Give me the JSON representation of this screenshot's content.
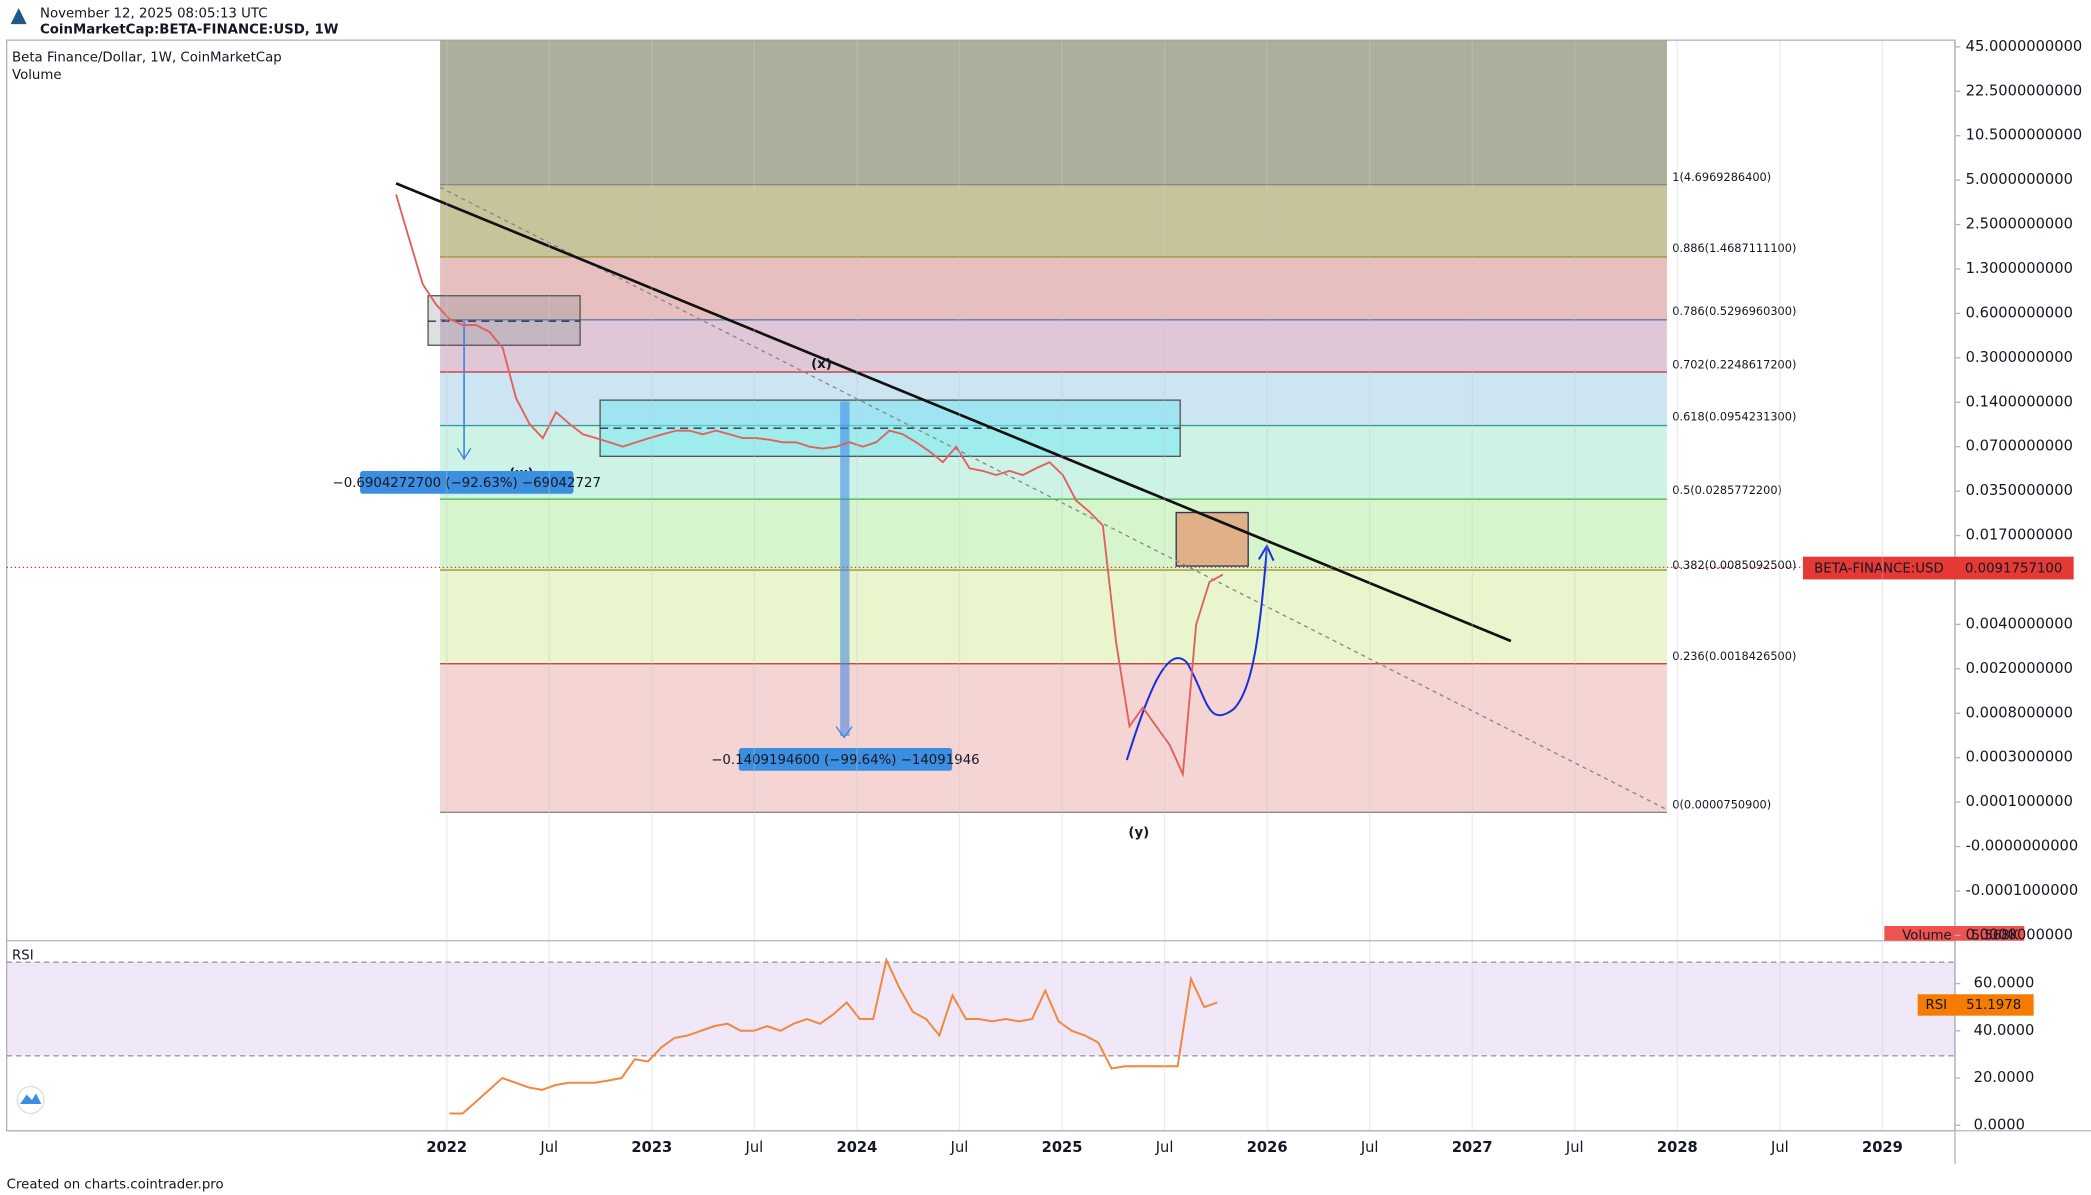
{
  "header": {
    "timestamp": "November 12, 2025 08:05:13 UTC",
    "symbol": "CoinMarketCap:BETA-FINANCE:USD, 1W"
  },
  "legend": {
    "title": "Beta Finance/Dollar, 1W, CoinMarketCap",
    "volume": "Volume"
  },
  "price_axis": [
    "45.0000000000",
    "22.5000000000",
    "10.5000000000",
    "5.0000000000",
    "2.5000000000",
    "1.3000000000",
    "0.6000000000",
    "0.3000000000",
    "0.1400000000",
    "0.0700000000",
    "0.0350000000",
    "0.0170000000",
    "0.0040000000",
    "0.0020000000",
    "0.0008000000",
    "0.0003000000",
    "0.0001000000",
    "-0.0000000000",
    "-0.0001000000",
    "0.0000000000"
  ],
  "current_price": {
    "symbol": "BETA-FINANCE:USD",
    "value": "0.0091757100"
  },
  "volume_badge": {
    "name": "Volume",
    "value": "5.568K"
  },
  "fib_levels": [
    "1(4.6969286400)",
    "0.886(1.4687111100)",
    "0.786(0.5296960300)",
    "0.702(0.2248617200)",
    "0.618(0.0954231300)",
    "0.5(0.0285772200)",
    "0.382(0.0085092500)",
    "0.236(0.0018426500)",
    "0(0.0000750900)"
  ],
  "waves": [
    "(x)",
    "(w)",
    "(y)"
  ],
  "measures": [
    "−0.6904272700 (−92.63%) −69042727",
    "−0.1409194600 (−99.64%) −14091946"
  ],
  "price": [
    4.0,
    2.0,
    1.0,
    0.7,
    0.55,
    0.5,
    0.5,
    0.45,
    0.35,
    0.15,
    0.1,
    0.08,
    0.12,
    0.1,
    0.085,
    0.08,
    0.075,
    0.07,
    0.075,
    0.08,
    0.085,
    0.09,
    0.09,
    0.085,
    0.09,
    0.085,
    0.08,
    0.08,
    0.078,
    0.075,
    0.075,
    0.07,
    0.068,
    0.07,
    0.075,
    0.07,
    0.075,
    0.09,
    0.085,
    0.075,
    0.065,
    0.055,
    0.07,
    0.05,
    0.048,
    0.045,
    0.048,
    0.045,
    0.05,
    0.055,
    0.045,
    0.03,
    0.025,
    0.02,
    0.003,
    0.0006,
    0.0009,
    0.0006,
    0.0004,
    0.0002,
    0.004,
    0.008,
    0.009
  ],
  "rsi": {
    "label": "RSI",
    "axis": [
      "60.0000",
      "40.0000",
      "20.0000",
      "0.0000"
    ],
    "badge": "RSI",
    "value": "51.1978",
    "values": [
      5,
      5,
      10,
      15,
      20,
      18,
      16,
      15,
      17,
      18,
      18,
      18,
      19,
      20,
      28,
      27,
      33,
      37,
      38,
      40,
      42,
      43,
      40,
      40,
      42,
      40,
      43,
      45,
      43,
      47,
      52,
      45,
      45,
      70,
      58,
      48,
      45,
      38,
      55,
      45,
      45,
      44,
      45,
      44,
      45,
      57,
      44,
      40,
      38,
      35,
      24,
      25,
      25,
      25,
      25,
      25,
      62,
      50,
      52
    ]
  },
  "time_axis": [
    "2022",
    "Jul",
    "2023",
    "Jul",
    "2024",
    "Jul",
    "2025",
    "Jul",
    "2026",
    "Jul",
    "2027",
    "Jul",
    "2028",
    "Jul",
    "2029"
  ],
  "footer": "Created on charts.cointrader.pro"
}
